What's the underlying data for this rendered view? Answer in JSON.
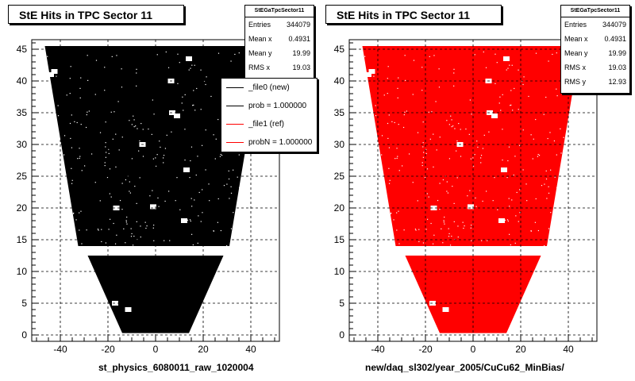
{
  "chart_data": [
    {
      "type": "scatter",
      "title": "StE Hits in TPC Sector 11",
      "xlabel": "st_physics_6080011_raw_1020004",
      "ylabel": "",
      "xlim": [
        -52,
        52
      ],
      "ylim": [
        -1,
        46.5
      ],
      "xticks": [
        -40,
        -20,
        0,
        20,
        40
      ],
      "yticks": [
        0,
        5,
        10,
        15,
        20,
        25,
        30,
        35,
        40,
        45
      ],
      "grid": true,
      "marker_color": "#000000",
      "region_rows_upper": [
        [
          14,
          45.5
        ]
      ],
      "region_rows_lower": [
        [
          0.3,
          12.5
        ]
      ],
      "upper_x_at_ymin": [
        -32.5,
        31
      ],
      "upper_x_at_ymax": [
        -46.5,
        45
      ],
      "lower_x_at_ymin": [
        -14,
        14
      ],
      "lower_x_at_ymax": [
        -28.5,
        28.5
      ],
      "gap_y": [
        12.5,
        14
      ],
      "holes": [
        [
          -5.5,
          30
        ],
        [
          13,
          26
        ],
        [
          6.5,
          40
        ],
        [
          -16.5,
          20
        ],
        [
          -1,
          20.2
        ],
        [
          12,
          18
        ],
        [
          7,
          35
        ],
        [
          9,
          34.5
        ],
        [
          -17,
          5
        ],
        [
          -11.5,
          4
        ],
        [
          14,
          43.5
        ],
        [
          -44,
          41
        ],
        [
          -42.5,
          41.5
        ]
      ],
      "stats": {
        "name": "StEGaTpcSector11",
        "entries_label": "Entries",
        "entries": "344079",
        "meanx_label": "Mean x",
        "meanx": "0.4931",
        "meany_label": "Mean y",
        "meany": "19.99",
        "rmsx_label": "RMS x",
        "rmsx": "19.03"
      },
      "legend": [
        {
          "label": "_file0 (new)",
          "color": "#000000"
        },
        {
          "label": "prob = 1.000000",
          "color": "#000000"
        },
        {
          "label": "_file1 (ref)",
          "color": "#ff0000"
        },
        {
          "label": "probN = 1.000000",
          "color": "#ff0000"
        }
      ]
    },
    {
      "type": "scatter",
      "title": "StE Hits in TPC Sector 11",
      "xlabel": "new/daq_sl302/year_2005/CuCu62_MinBias/",
      "ylabel": "",
      "xlim": [
        -52,
        52
      ],
      "ylim": [
        -1,
        46.5
      ],
      "xticks": [
        -40,
        -20,
        0,
        20,
        40
      ],
      "yticks": [
        0,
        5,
        10,
        15,
        20,
        25,
        30,
        35,
        40,
        45
      ],
      "grid": true,
      "marker_color": "#ff0000",
      "stats": {
        "name": "StEGaTpcSector11",
        "entries_label": "Entries",
        "entries": "344079",
        "meanx_label": "Mean x",
        "meanx": "0.4931",
        "meany_label": "Mean y",
        "meany": "19.99",
        "rmsx_label": "RMS x",
        "rmsx": "19.03",
        "rmsy_label": "RMS y",
        "rmsy": "12.93"
      }
    }
  ]
}
